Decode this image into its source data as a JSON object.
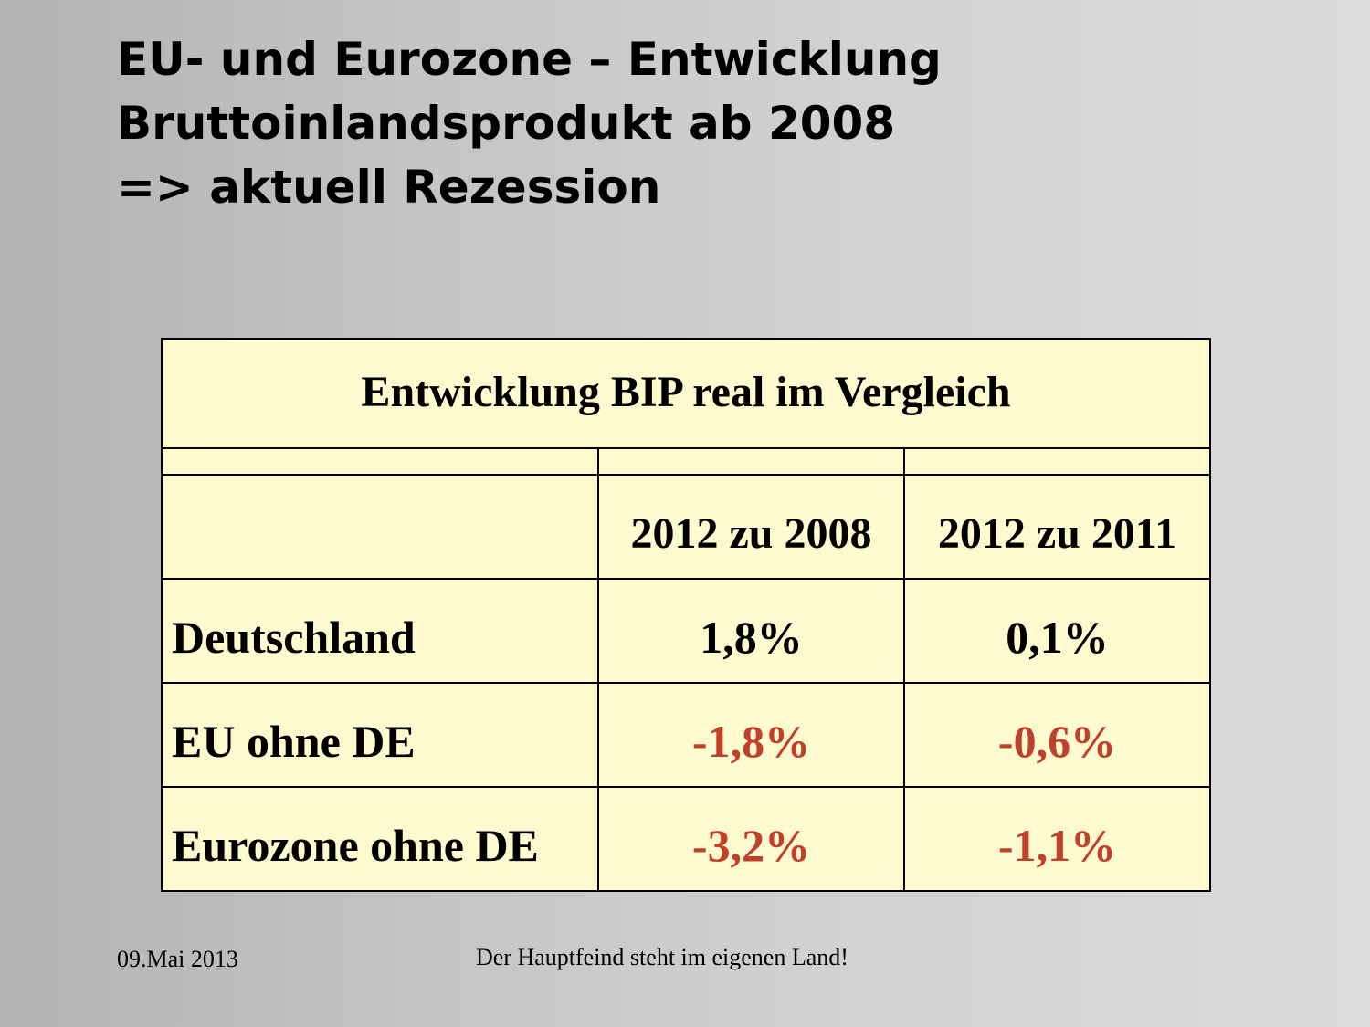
{
  "slide": {
    "title_lines": [
      "EU- und Eurozone – Entwicklung",
      "Bruttoinlandsprodukt ab 2008",
      "=> aktuell Rezession"
    ]
  },
  "table": {
    "title": "Entwicklung BIP real im Vergleich",
    "columns": [
      "",
      "2012 zu 2008",
      "2012 zu 2011"
    ],
    "rows": [
      {
        "label": "Deutschland",
        "values": [
          "1,8%",
          "0,1%"
        ],
        "negative": [
          false,
          false
        ]
      },
      {
        "label": "EU ohne DE",
        "values": [
          "-1,8%",
          "-0,6%"
        ],
        "negative": [
          true,
          true
        ]
      },
      {
        "label": "Eurozone ohne DE",
        "values": [
          "-3,2%",
          "-1,1%"
        ],
        "negative": [
          true,
          true
        ]
      }
    ]
  },
  "footer": {
    "date": "09.Mai 2013",
    "slogan": "Der Hauptfeind steht im eigenen Land!"
  },
  "colors": {
    "table_background": "#fefad0",
    "negative_value": "#c0412b",
    "border": "#000000"
  }
}
